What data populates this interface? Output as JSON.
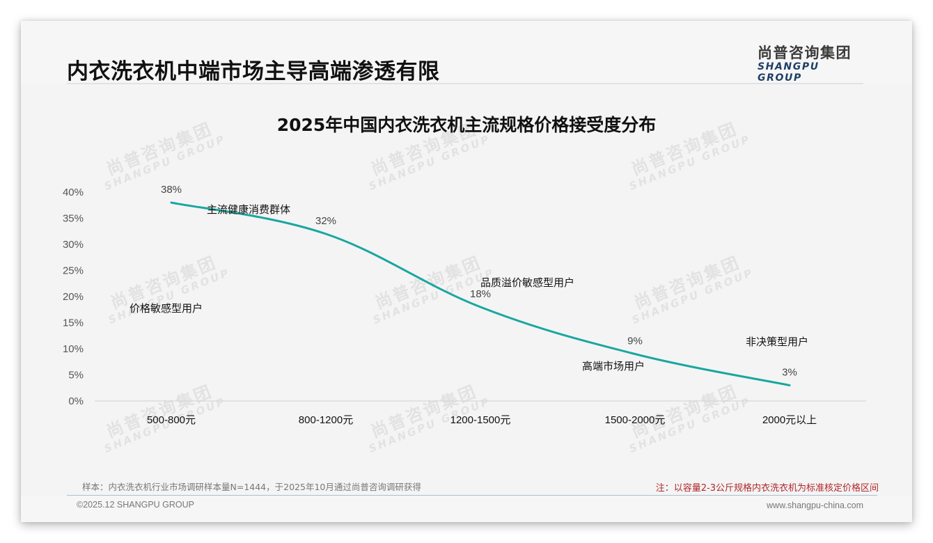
{
  "header": {
    "title": "内衣洗衣机中端市场主导高端渗透有限",
    "logo_cn": "尚普咨询集团",
    "logo_en": "SHANGPU GROUP"
  },
  "watermark": {
    "cn": "尚普咨询集团",
    "en": "SHANGPU GROUP"
  },
  "chart_data": {
    "type": "line",
    "title": "2025年中国内衣洗衣机主流规格价格接受度分布",
    "xlabel": "",
    "ylabel": "",
    "categories": [
      "500-800元",
      "800-1200元",
      "1200-1500元",
      "1500-2000元",
      "2000元以上"
    ],
    "values": [
      38,
      32,
      18,
      9,
      3
    ],
    "value_labels": [
      "38%",
      "32%",
      "18%",
      "9%",
      "3%"
    ],
    "ylim": [
      0,
      40
    ],
    "y_ticks": [
      "0%",
      "5%",
      "10%",
      "15%",
      "20%",
      "25%",
      "30%",
      "35%",
      "40%"
    ],
    "grid": false,
    "legend": null,
    "line_color": "#1aa6a0",
    "annotations": [
      {
        "text": "主流健康消费群体",
        "near": "500-800元 to 800-1200元"
      },
      {
        "text": "价格敏感型用户",
        "near": "500-800元"
      },
      {
        "text": "品质溢价敏感型用户",
        "near": "1200-1500元"
      },
      {
        "text": "高端市场用户",
        "near": "1500-2000元"
      },
      {
        "text": "非决策型用户",
        "near": "2000元以上"
      }
    ]
  },
  "footer": {
    "sample_note": "样本：内衣洗衣机行业市场调研样本量N=1444，于2025年10月通过尚普咨询调研获得",
    "red_note": "注：以容量2-3公斤规格内衣洗衣机为标准核定价格区间",
    "copyright": "©2025.12 SHANGPU GROUP",
    "website": "www.shangpu-china.com"
  },
  "colors": {
    "line": "#1aa6a0",
    "note_red": "#b0262a",
    "logo_navy": "#1e3f66",
    "background": "#f4f4f4"
  }
}
